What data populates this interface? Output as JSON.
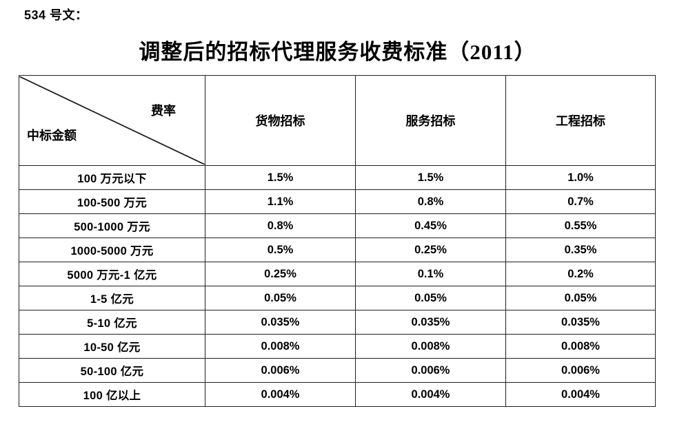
{
  "doc_ref": "534 号文：",
  "title": "调整后的招标代理服务收费标准（2011）",
  "table": {
    "corner": {
      "top_right": "费率",
      "bottom_left": "中标金额"
    },
    "columns": [
      "货物招标",
      "服务招标",
      "工程招标"
    ],
    "rows": [
      {
        "label": "100 万元以下",
        "values": [
          "1.5%",
          "1.5%",
          "1.0%"
        ]
      },
      {
        "label": "100-500 万元",
        "values": [
          "1.1%",
          "0.8%",
          "0.7%"
        ]
      },
      {
        "label": "500-1000 万元",
        "values": [
          "0.8%",
          "0.45%",
          "0.55%"
        ]
      },
      {
        "label": "1000-5000 万元",
        "values": [
          "0.5%",
          "0.25%",
          "0.35%"
        ]
      },
      {
        "label": "5000 万元-1 亿元",
        "values": [
          "0.25%",
          "0.1%",
          "0.2%"
        ]
      },
      {
        "label": "1-5 亿元",
        "values": [
          "0.05%",
          "0.05%",
          "0.05%"
        ]
      },
      {
        "label": "5-10 亿元",
        "values": [
          "0.035%",
          "0.035%",
          "0.035%"
        ]
      },
      {
        "label": "10-50 亿元",
        "values": [
          "0.008%",
          "0.008%",
          "0.008%"
        ]
      },
      {
        "label": "50-100 亿元",
        "values": [
          "0.006%",
          "0.006%",
          "0.006%"
        ]
      },
      {
        "label": "100 亿以上",
        "values": [
          "0.004%",
          "0.004%",
          "0.004%"
        ]
      }
    ]
  },
  "colors": {
    "text": "#000000",
    "border": "#1f1f1f",
    "background": "#ffffff"
  }
}
